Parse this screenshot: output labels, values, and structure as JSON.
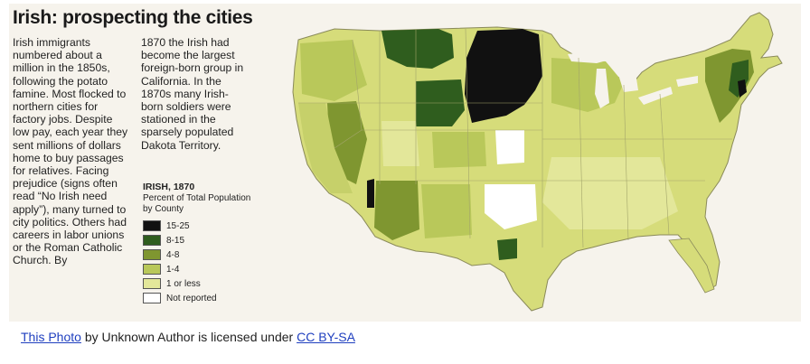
{
  "title": "Irish: prospecting the cities",
  "body_col1": "Irish immigrants numbered about a million in the 1850s, following the potato famine. Most flocked to northern cities for factory jobs. Despite low pay, each year they sent millions of dollars home to buy passages for relatives. Facing prejudice (signs often read “No Irish need apply”), many turned to city politics. Others had careers in labor unions or the Roman Catholic Church. By",
  "body_col2": "1870 the Irish had become the largest foreign-born group in California. In the 1870s many Irish-born soldiers were stationed in the sparsely populated Dakota Territory.",
  "legend": {
    "title": "IRISH, 1870",
    "subtitle": "Percent of Total Population by County",
    "items": [
      {
        "label": "15-25",
        "color": "#111111"
      },
      {
        "label": "8-15",
        "color": "#2f5d1e"
      },
      {
        "label": "4-8",
        "color": "#7f9630"
      },
      {
        "label": "1-4",
        "color": "#b9c85a"
      },
      {
        "label": "1 or less",
        "color": "#e3e79a"
      },
      {
        "label": "Not reported",
        "color": "#ffffff"
      }
    ]
  },
  "credit": {
    "link1": "This Photo",
    "middle": " by Unknown Author is licensed under ",
    "link2": "CC BY-SA"
  },
  "map_colors": {
    "ocean_bg": "#f6f3ec",
    "base": "#d6dc7a",
    "light": "#e3e79a",
    "mid": "#b9c85a",
    "dark": "#7f9630",
    "darker": "#2f5d1e",
    "black": "#111111",
    "lakes": "#f6f3ec"
  }
}
